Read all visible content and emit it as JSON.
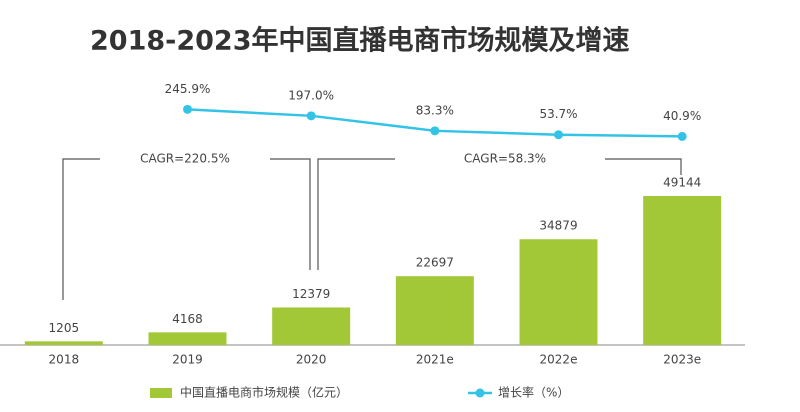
{
  "chart_data": {
    "type": "bar",
    "title": "2018-2023年中国直播电商市场规模及增速",
    "categories": [
      "2018",
      "2019",
      "2020",
      "2021e",
      "2022e",
      "2023e"
    ],
    "series": [
      {
        "name": "中国直播电商市场规模（亿元）",
        "type": "bar",
        "color": "#a3c837",
        "values": [
          1205,
          4168,
          12379,
          22697,
          34879,
          49144
        ]
      },
      {
        "name": "增长率（%）",
        "type": "line",
        "axis": "y2",
        "color": "#33c3e6",
        "values": [
          null,
          245.9,
          197.0,
          83.3,
          53.7,
          40.9
        ],
        "value_labels": [
          null,
          "245.9%",
          "197.0%",
          "83.3%",
          "53.7%",
          "40.9%"
        ]
      }
    ],
    "ylim": [
      0,
      94000
    ],
    "y2lim": [
      -1540,
      620
    ],
    "annotations": [
      "CAGR=220.5%",
      "CAGR=58.3%"
    ],
    "legend": "bottom"
  }
}
